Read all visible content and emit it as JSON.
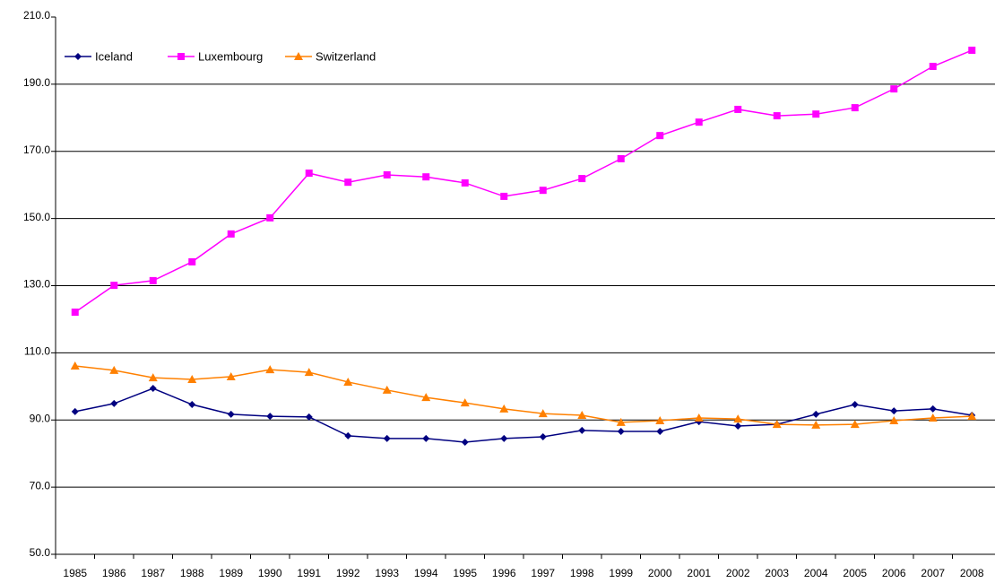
{
  "chart_data": {
    "type": "line",
    "categories": [
      "1985",
      "1986",
      "1987",
      "1988",
      "1989",
      "1990",
      "1991",
      "1992",
      "1993",
      "1994",
      "1995",
      "1996",
      "1997",
      "1998",
      "1999",
      "2000",
      "2001",
      "2002",
      "2003",
      "2004",
      "2005",
      "2006",
      "2007",
      "2008"
    ],
    "series": [
      {
        "name": "Iceland",
        "color": "#000080",
        "marker": "diamond",
        "values": [
          92.5,
          94.9,
          99.4,
          94.6,
          91.7,
          91.1,
          90.9,
          85.3,
          84.5,
          84.5,
          83.4,
          84.5,
          85.0,
          86.9,
          86.6,
          86.6,
          89.5,
          88.2,
          88.7,
          91.7,
          94.6,
          92.7,
          93.3,
          91.4
        ]
      },
      {
        "name": "Luxembourg",
        "color": "#ff00ff",
        "marker": "square",
        "values": [
          122.1,
          130.1,
          131.5,
          137.1,
          145.4,
          150.2,
          163.5,
          160.8,
          163.0,
          162.4,
          160.6,
          156.6,
          158.4,
          161.9,
          167.8,
          174.7,
          178.7,
          182.5,
          180.6,
          181.1,
          183.0,
          188.6,
          195.3,
          200.1
        ]
      },
      {
        "name": "Switzerland",
        "color": "#ff8000",
        "marker": "triangle",
        "values": [
          106.1,
          104.8,
          102.6,
          102.1,
          102.9,
          105.0,
          104.2,
          101.3,
          98.9,
          96.7,
          95.1,
          93.3,
          91.9,
          91.4,
          89.3,
          89.8,
          90.6,
          90.3,
          88.7,
          88.5,
          88.7,
          89.8,
          90.6,
          91.1
        ]
      }
    ],
    "ylim": [
      50,
      210
    ],
    "yticks": [
      {
        "value": 50,
        "label": "50.0"
      },
      {
        "value": 70,
        "label": "70.0"
      },
      {
        "value": 90,
        "label": "90.0"
      },
      {
        "value": 110,
        "label": "110.0"
      },
      {
        "value": 130,
        "label": "130.0"
      },
      {
        "value": 150,
        "label": "150.0"
      },
      {
        "value": 170,
        "label": "170.0"
      },
      {
        "value": 190,
        "label": "190.0"
      },
      {
        "value": 210,
        "label": "210.0"
      }
    ],
    "grid": true,
    "legend": "top-left"
  }
}
